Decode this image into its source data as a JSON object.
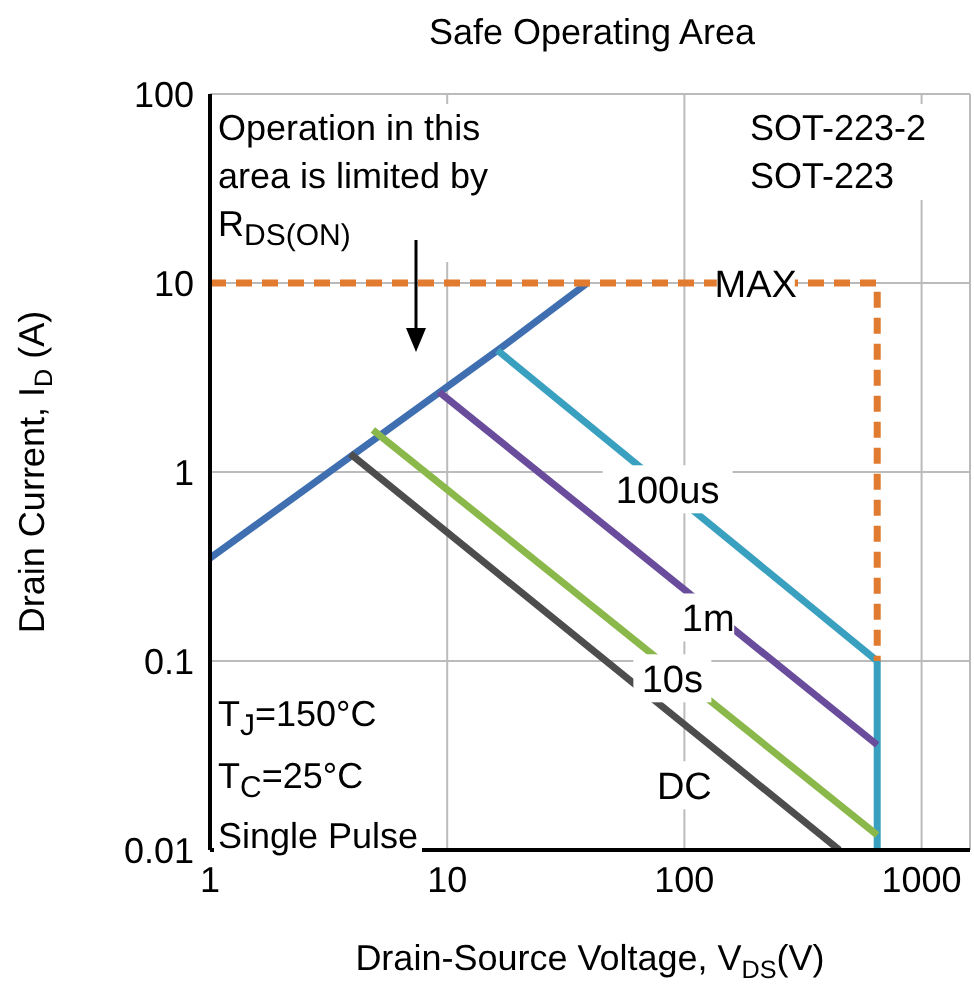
{
  "chart_data": {
    "type": "line",
    "title": "Safe Operating Area",
    "xlabel": "Drain-Source Voltage, V$_{DS}$(V)",
    "ylabel": "Drain Current, I$_{D}$ (A)",
    "log": "xy",
    "xlim": [
      1,
      1600
    ],
    "xticks": [
      1,
      10,
      100,
      1000
    ],
    "ylim": [
      0.01,
      100
    ],
    "yticks": [
      0.01,
      0.1,
      1,
      10,
      100
    ],
    "grid": true,
    "marker": "none",
    "series": [
      {
        "color": "#3f6fb0",
        "x": [
          1,
          16.3,
          39
        ],
        "values": [
          0.35,
          4.4,
          10
        ]
      },
      {
        "color": "#3aa0bf",
        "x": [
          16.3,
          650,
          650
        ],
        "values": [
          4.4,
          0.1,
          0.01
        ]
      },
      {
        "color": "#6a4c9c",
        "x": [
          9.25,
          650
        ],
        "values": [
          2.65,
          0.036
        ]
      },
      {
        "color": "#8ab84a",
        "x": [
          4.86,
          650
        ],
        "values": [
          1.67,
          0.012
        ]
      },
      {
        "color": "#4d4d4d",
        "x": [
          3.9,
          450
        ],
        "values": [
          1.25,
          0.01
        ]
      },
      {
        "color": "#e07b30",
        "line_style": "dashed",
        "x": [
          1,
          650,
          650
        ],
        "values": [
          10,
          10,
          0.1
        ]
      }
    ],
    "annotations": [
      "Operation in this area is limited by R$_{DS(ON)}$",
      "SOT-223-2\nSOT-223",
      "T$_{J}$=150°C\nT$_{C}$=25°C\nSingle Pulse",
      {
        "text": "MAX",
        "x": 200,
        "y": 10
      },
      {
        "text": "100us",
        "x": 85,
        "y": 0.81
      },
      {
        "text": "1m",
        "x": 126,
        "y": 0.17
      },
      {
        "text": "10s",
        "x": 89,
        "y": 0.081
      },
      {
        "text": "DC",
        "x": 100,
        "y": 0.022
      }
    ]
  }
}
